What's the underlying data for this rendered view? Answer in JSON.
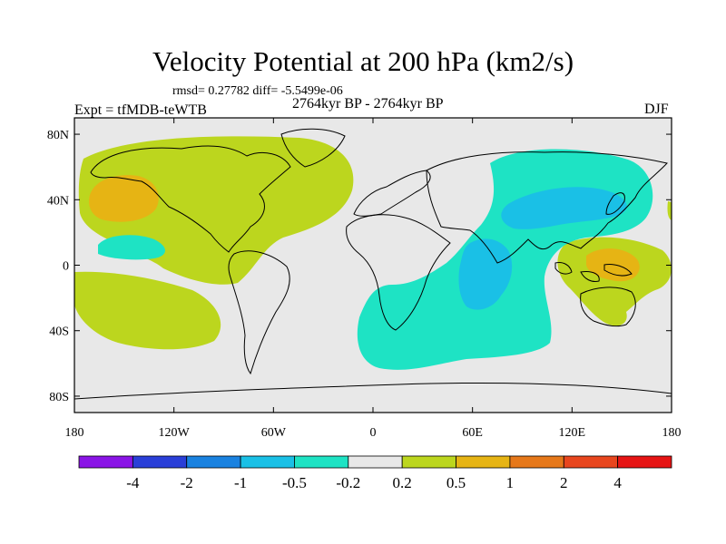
{
  "chart_data": {
    "type": "map-contour",
    "title": "Velocity Potential at 200 hPa (km2/s)",
    "stats_text": "rmsd= 0.27782 diff= -5.5499e-06",
    "left_string": "Expt = tfMDB-teWTB",
    "center_string": "2764kyr BP - 2764kyr BP",
    "right_string": "DJF",
    "x_ticks": [
      "180",
      "120W",
      "60W",
      "0",
      "60E",
      "120E",
      "180"
    ],
    "y_ticks": [
      "80N",
      "40N",
      "0",
      "40S",
      "80S"
    ],
    "lon_range": [
      -180,
      180
    ],
    "lat_range": [
      -90,
      90
    ],
    "colorbar": {
      "levels": [
        "-4",
        "-2",
        "-1",
        "-0.5",
        "-0.2",
        "0.2",
        "0.5",
        "1",
        "2",
        "4"
      ],
      "colors": [
        "#8a14e6",
        "#2a3fd8",
        "#1a82e0",
        "#1ac0e6",
        "#1ee3c4",
        "#e8e8e8",
        "#bcd61e",
        "#e6b414",
        "#e6781a",
        "#e8461e",
        "#e61414"
      ]
    }
  }
}
